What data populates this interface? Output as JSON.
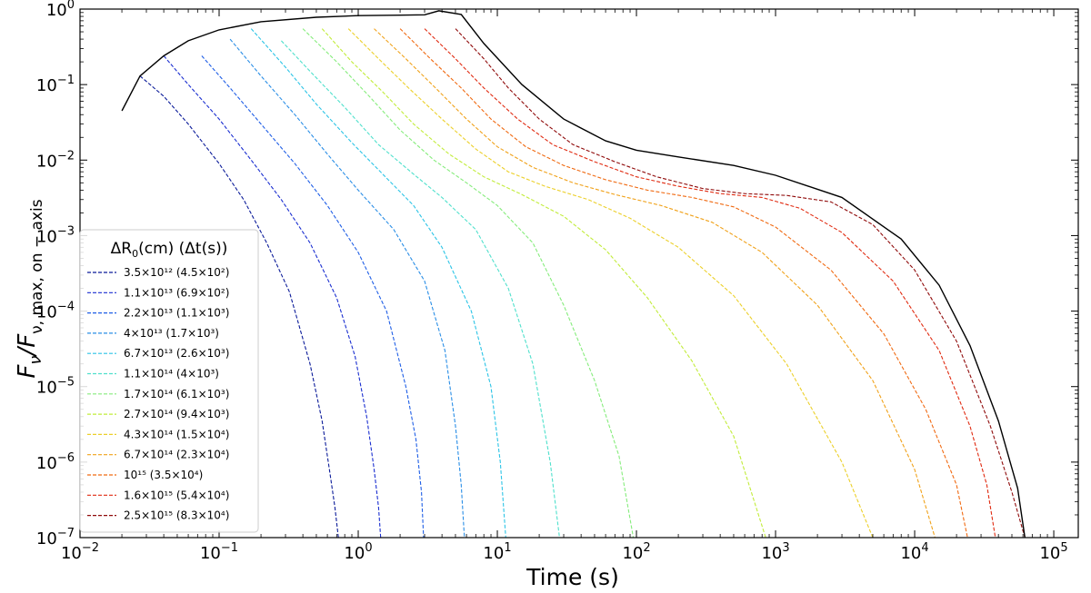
{
  "chart_data": {
    "type": "line",
    "xscale": "log",
    "yscale": "log",
    "xlim": [
      0.01,
      150000
    ],
    "ylim": [
      1e-07,
      1
    ],
    "xlabel": "Time (s)",
    "ylabel_main": "F",
    "ylabel_nu": "ν",
    "ylabel_slash": "/F",
    "ylabel_sub": "ν, max, on − axis",
    "x_ticks": [
      {
        "value": 0.01,
        "base": "10",
        "exp": "−2"
      },
      {
        "value": 0.1,
        "base": "10",
        "exp": "−1"
      },
      {
        "value": 1,
        "base": "10",
        "exp": "0"
      },
      {
        "value": 10,
        "base": "10",
        "exp": "1"
      },
      {
        "value": 100,
        "base": "10",
        "exp": "2"
      },
      {
        "value": 1000,
        "base": "10",
        "exp": "3"
      },
      {
        "value": 10000,
        "base": "10",
        "exp": "4"
      },
      {
        "value": 100000,
        "base": "10",
        "exp": "5"
      }
    ],
    "y_ticks": [
      {
        "value": 1,
        "base": "10",
        "exp": "0"
      },
      {
        "value": 0.1,
        "base": "10",
        "exp": "−1"
      },
      {
        "value": 0.01,
        "base": "10",
        "exp": "−2"
      },
      {
        "value": 0.001,
        "base": "10",
        "exp": "−3"
      },
      {
        "value": 0.0001,
        "base": "10",
        "exp": "−4"
      },
      {
        "value": 1e-05,
        "base": "10",
        "exp": "−5"
      },
      {
        "value": 1e-06,
        "base": "10",
        "exp": "−6"
      },
      {
        "value": 1e-07,
        "base": "10",
        "exp": "−7"
      }
    ],
    "legend_title_delta": "ΔR",
    "legend_title_sub": "0",
    "legend_title_rest": "(cm) (Δt(s))",
    "legend_placement": "center-left",
    "grid": false,
    "envelope": {
      "color": "#000000",
      "x": [
        0.02,
        0.027,
        0.04,
        0.06,
        0.1,
        0.2,
        0.5,
        1,
        2,
        3,
        3.8,
        5.5,
        8,
        15,
        30,
        60,
        100,
        200,
        500,
        1000,
        3000,
        8000,
        15000,
        25000,
        40000,
        55000,
        62000
      ],
      "y": [
        0.045,
        0.13,
        0.24,
        0.38,
        0.53,
        0.68,
        0.78,
        0.82,
        0.83,
        0.84,
        0.95,
        0.85,
        0.35,
        0.1,
        0.035,
        0.018,
        0.0135,
        0.011,
        0.0085,
        0.0063,
        0.0032,
        0.0009,
        0.00022,
        3.5e-05,
        3.5e-06,
        4.5e-07,
        1e-07
      ]
    },
    "series": [
      {
        "name": "3.5×10¹² (4.5×10²)",
        "color": "#0b1b99",
        "x": [
          0.027,
          0.04,
          0.06,
          0.1,
          0.15,
          0.22,
          0.32,
          0.45,
          0.55,
          0.62,
          0.68,
          0.72
        ],
        "y": [
          0.13,
          0.07,
          0.03,
          0.009,
          0.003,
          0.0008,
          0.00018,
          2e-05,
          3.5e-06,
          8e-07,
          2.5e-07,
          1e-07
        ]
      },
      {
        "name": "1.1×10¹³ (6.9×10²)",
        "color": "#1a2ed0",
        "x": [
          0.04,
          0.06,
          0.1,
          0.17,
          0.28,
          0.45,
          0.7,
          0.95,
          1.15,
          1.3,
          1.4,
          1.45
        ],
        "y": [
          0.24,
          0.1,
          0.035,
          0.01,
          0.003,
          0.0008,
          0.00015,
          2.5e-05,
          4e-06,
          8e-07,
          2.5e-07,
          1e-07
        ]
      },
      {
        "name": "2.2×10¹³ (1.1×10³)",
        "color": "#1f5ee6",
        "x": [
          0.075,
          0.12,
          0.2,
          0.35,
          0.6,
          1,
          1.6,
          2.2,
          2.6,
          2.85,
          2.95
        ],
        "y": [
          0.24,
          0.09,
          0.03,
          0.009,
          0.0025,
          0.0006,
          0.0001,
          1e-05,
          2e-06,
          4e-07,
          1e-07
        ]
      },
      {
        "name": "4×10¹³ (1.7×10³)",
        "color": "#2a8ee6",
        "x": [
          0.12,
          0.2,
          0.35,
          0.6,
          1,
          1.8,
          3,
          4.2,
          5,
          5.5,
          5.8
        ],
        "y": [
          0.4,
          0.13,
          0.04,
          0.012,
          0.004,
          0.0012,
          0.00025,
          3e-05,
          3e-06,
          5e-07,
          1e-07
        ]
      },
      {
        "name": "6.7×10¹³ (2.6×10³)",
        "color": "#2cc4e6",
        "x": [
          0.17,
          0.3,
          0.5,
          0.9,
          1.5,
          2.5,
          4,
          6.5,
          9,
          10.5,
          11.5
        ],
        "y": [
          0.55,
          0.17,
          0.055,
          0.017,
          0.0065,
          0.0025,
          0.0007,
          0.0001,
          1e-05,
          1e-06,
          1e-07
        ]
      },
      {
        "name": "1.1×10¹⁴ (4×10³)",
        "color": "#4fe0cc",
        "x": [
          0.28,
          0.45,
          0.8,
          1.4,
          2.5,
          4,
          7,
          12,
          18,
          24,
          28
        ],
        "y": [
          0.38,
          0.15,
          0.05,
          0.016,
          0.0065,
          0.0032,
          0.0012,
          0.0002,
          2e-05,
          1e-06,
          1e-07
        ]
      },
      {
        "name": "1.7×10¹⁴ (6.1×10³)",
        "color": "#86ec7c",
        "x": [
          0.4,
          0.7,
          1.2,
          2,
          3.5,
          6,
          10,
          18,
          30,
          50,
          75,
          95
        ],
        "y": [
          0.55,
          0.2,
          0.07,
          0.025,
          0.01,
          0.005,
          0.0025,
          0.0008,
          0.00012,
          1.2e-05,
          1.2e-06,
          1e-07
        ]
      },
      {
        "name": "2.7×10¹⁴ (9.4×10³)",
        "color": "#c2ec3a",
        "x": [
          0.55,
          0.9,
          1.5,
          2.5,
          4.5,
          8,
          15,
          30,
          60,
          120,
          250,
          500,
          850
        ],
        "y": [
          0.55,
          0.2,
          0.08,
          0.03,
          0.012,
          0.006,
          0.0035,
          0.0018,
          0.00065,
          0.00015,
          2.2e-05,
          2.2e-06,
          1e-07
        ]
      },
      {
        "name": "4.3×10¹⁴ (1.5×10⁴)",
        "color": "#ecd02a",
        "x": [
          0.85,
          1.4,
          2.3,
          4,
          7,
          12,
          22,
          45,
          90,
          200,
          500,
          1200,
          3000,
          5000
        ],
        "y": [
          0.55,
          0.22,
          0.09,
          0.035,
          0.014,
          0.007,
          0.0045,
          0.003,
          0.0017,
          0.0007,
          0.00016,
          2e-05,
          1e-06,
          1e-07
        ]
      },
      {
        "name": "6.7×10¹⁴ (2.3×10⁴)",
        "color": "#f0a21a",
        "x": [
          1.3,
          2.2,
          3.6,
          6,
          10,
          18,
          35,
          70,
          150,
          350,
          800,
          2000,
          5000,
          10000,
          14000
        ],
        "y": [
          0.55,
          0.22,
          0.09,
          0.035,
          0.015,
          0.008,
          0.005,
          0.0035,
          0.0025,
          0.0015,
          0.0006,
          0.00012,
          1.2e-05,
          8e-07,
          1e-07
        ]
      },
      {
        "name": "10¹⁵ (3.5×10⁴)",
        "color": "#f06a12",
        "x": [
          2,
          3.3,
          5.5,
          9,
          16,
          30,
          60,
          120,
          250,
          500,
          1000,
          2500,
          6000,
          12000,
          20000,
          24000
        ],
        "y": [
          0.55,
          0.22,
          0.09,
          0.035,
          0.015,
          0.0085,
          0.0055,
          0.004,
          0.0032,
          0.0024,
          0.0013,
          0.00035,
          5e-05,
          5e-06,
          5e-07,
          1e-07
        ]
      },
      {
        "name": "1.6×10¹⁵ (5.4×10⁴)",
        "color": "#e02a10",
        "x": [
          3,
          5,
          8,
          14,
          25,
          50,
          100,
          200,
          400,
          800,
          1500,
          3000,
          7000,
          15000,
          25000,
          33000,
          38000
        ],
        "y": [
          0.55,
          0.22,
          0.09,
          0.035,
          0.016,
          0.0095,
          0.006,
          0.0045,
          0.0036,
          0.0032,
          0.0023,
          0.0011,
          0.00025,
          3e-05,
          3e-06,
          5e-07,
          1e-07
        ]
      },
      {
        "name": "2.5×10¹⁵ (8.3×10⁴)",
        "color": "#8f0a0a",
        "x": [
          5,
          8,
          12,
          20,
          35,
          70,
          140,
          300,
          600,
          1200,
          2500,
          5000,
          10000,
          20000,
          35000,
          50000,
          62000
        ],
        "y": [
          0.55,
          0.22,
          0.09,
          0.035,
          0.016,
          0.0095,
          0.006,
          0.0042,
          0.0036,
          0.0034,
          0.0028,
          0.0014,
          0.00035,
          4e-05,
          3e-06,
          4e-07,
          1e-07
        ]
      }
    ]
  }
}
